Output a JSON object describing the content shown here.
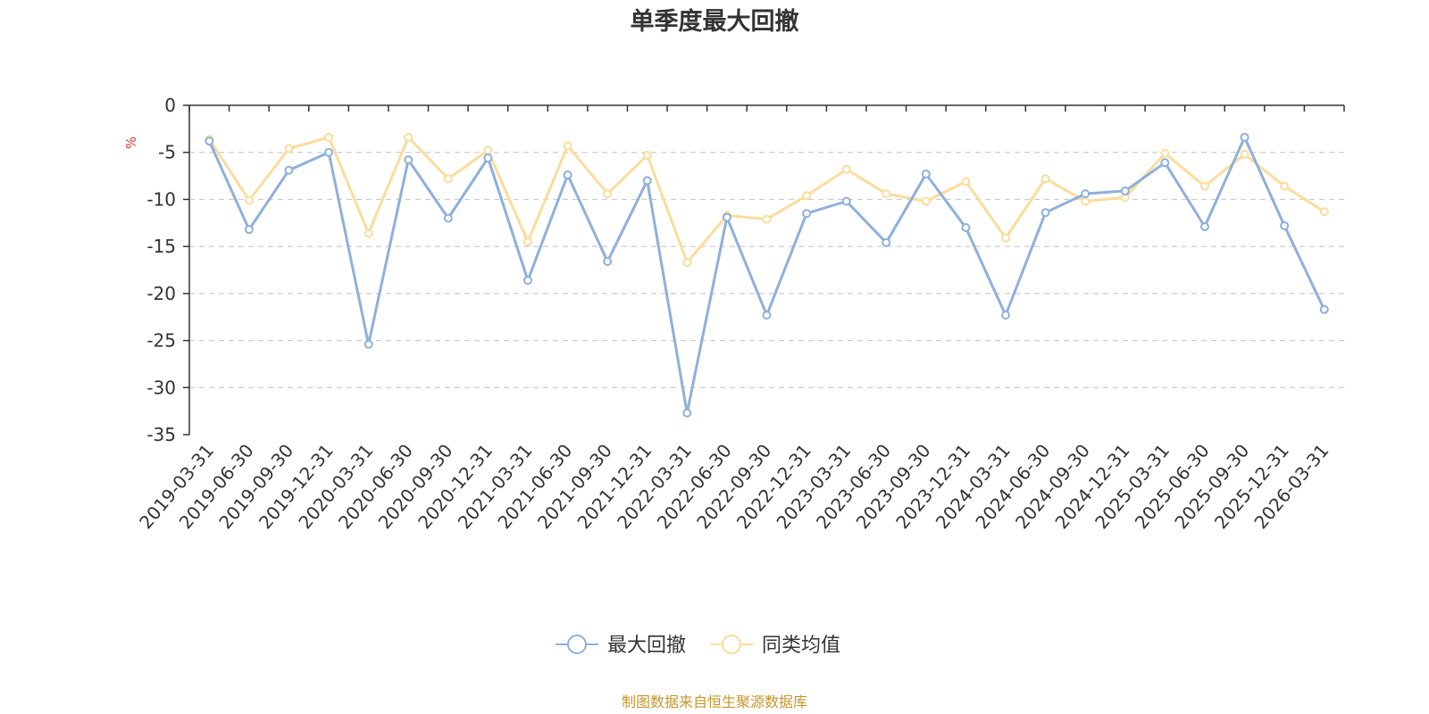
{
  "chart_data": {
    "type": "line",
    "title": "单季度最大回撤",
    "ylabel": "%",
    "xlabel": "",
    "ylim": [
      -35,
      0
    ],
    "yticks": [
      0,
      -5,
      -10,
      -15,
      -20,
      -25,
      -30,
      -35
    ],
    "grid": true,
    "legend_position": "bottom",
    "categories": [
      "2019-03-31",
      "2019-06-30",
      "2019-09-30",
      "2019-12-31",
      "2020-03-31",
      "2020-06-30",
      "2020-09-30",
      "2020-12-31",
      "2021-03-31",
      "2021-06-30",
      "2021-09-30",
      "2021-12-31",
      "2022-03-31",
      "2022-06-30",
      "2022-09-30",
      "2022-12-31",
      "2023-03-31",
      "2023-06-30",
      "2023-09-30",
      "2023-12-31",
      "2024-03-31",
      "2024-06-30",
      "2024-09-30",
      "2024-12-31",
      "2025-03-31",
      "2025-06-30",
      "2025-09-30",
      "2025-12-31",
      "2026-03-31"
    ],
    "series": [
      {
        "name": "最大回撤",
        "color": "#8eb0db",
        "values": [
          -3.8,
          -13.2,
          -6.9,
          -5.0,
          -25.4,
          -5.8,
          -12.0,
          -5.6,
          -18.6,
          -7.4,
          -16.6,
          -8.0,
          -32.7,
          -11.9,
          -22.3,
          -11.5,
          -10.2,
          -14.6,
          -7.3,
          -13.0,
          -22.3,
          -11.4,
          -9.4,
          -9.1,
          -6.1,
          -12.9,
          -3.4,
          -12.8,
          -21.7
        ]
      },
      {
        "name": "同类均值",
        "color": "#fcdc9c",
        "values": [
          -3.6,
          -10.1,
          -4.6,
          -3.4,
          -13.6,
          -3.4,
          -7.8,
          -4.8,
          -14.5,
          -4.3,
          -9.4,
          -5.3,
          -16.7,
          -11.7,
          -12.1,
          -9.6,
          -6.8,
          -9.4,
          -10.2,
          -8.1,
          -14.1,
          -7.8,
          -10.2,
          -9.8,
          -5.1,
          -8.6,
          -5.2,
          -8.6,
          -11.3
        ]
      }
    ],
    "source": "制图数据来自恒生聚源数据库",
    "colors": {
      "axis": "#333333",
      "grid": "#cccccc",
      "unit": "#e8321e",
      "source": "#c8962a"
    }
  }
}
